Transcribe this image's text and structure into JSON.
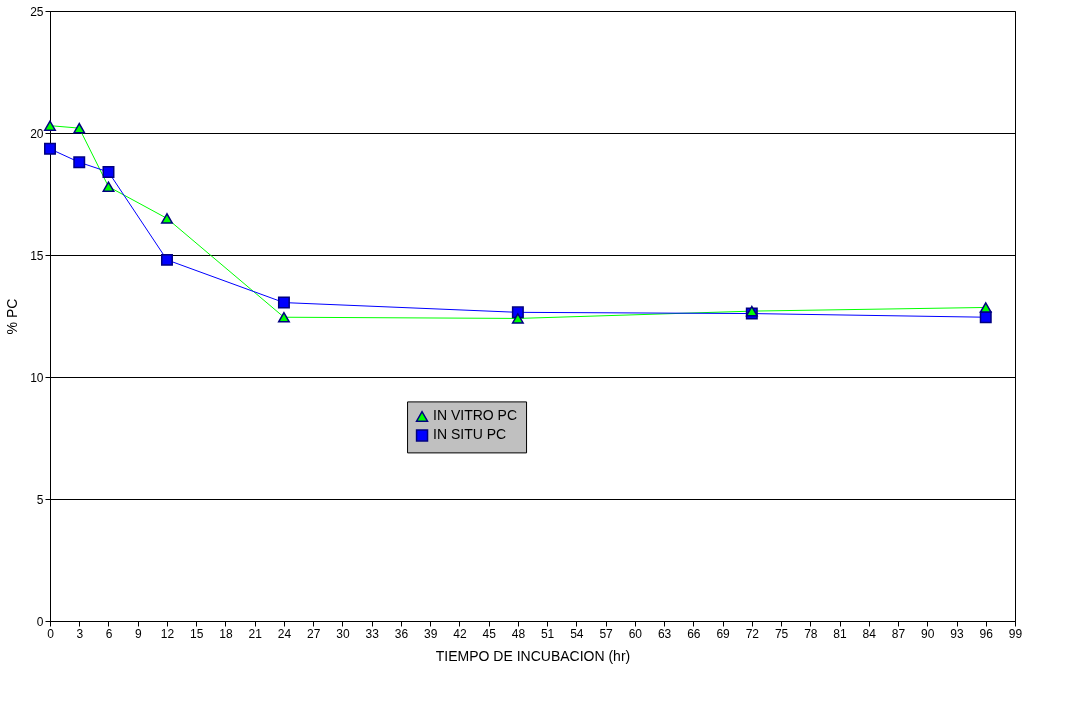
{
  "chart_data": {
    "type": "line",
    "xlabel": "TIEMPO DE INCUBACION (hr)",
    "ylabel": "% PC",
    "x": [
      0,
      3,
      6,
      12,
      24,
      48,
      72,
      96
    ],
    "series": [
      {
        "name": "IN VITRO PC",
        "color": "#00ff00",
        "marker": "triangle",
        "values": [
          20.3,
          20.2,
          17.8,
          16.5,
          12.45,
          12.4,
          12.7,
          12.85
        ]
      },
      {
        "name": "IN SITU PC",
        "color": "#0000ff",
        "marker": "square",
        "values": [
          19.35,
          18.8,
          18.4,
          14.8,
          13.05,
          12.65,
          12.6,
          12.45
        ]
      }
    ],
    "xlim": [
      0,
      99
    ],
    "xticks": [
      0,
      3,
      6,
      9,
      12,
      15,
      18,
      21,
      24,
      27,
      30,
      33,
      36,
      39,
      42,
      45,
      48,
      51,
      54,
      57,
      60,
      63,
      66,
      69,
      72,
      75,
      78,
      81,
      84,
      87,
      90,
      93,
      96,
      99
    ],
    "ylim": [
      0,
      25
    ],
    "yticks": [
      0,
      5,
      10,
      15,
      20,
      25
    ],
    "grid": "y",
    "legend": "center"
  }
}
